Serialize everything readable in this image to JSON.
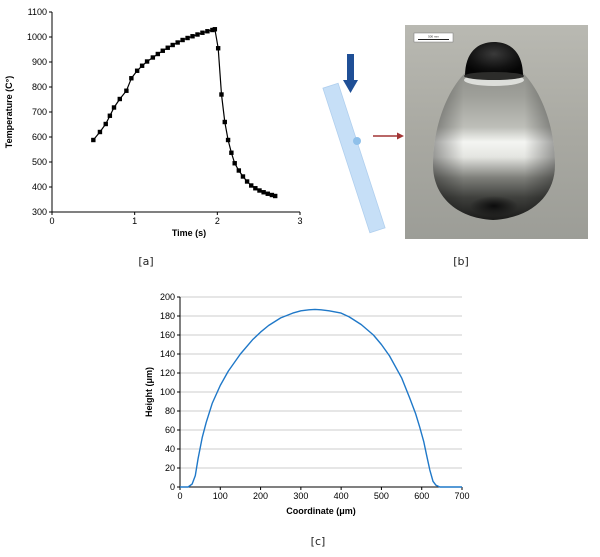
{
  "panels": {
    "a": {
      "caption": "[a]"
    },
    "b": {
      "caption": "[b]",
      "scale_bar_label": "500 mm"
    },
    "c": {
      "caption": "[c]"
    }
  },
  "chart_data": [
    {
      "panel": "a",
      "type": "line",
      "marker": "square",
      "color": "#000000",
      "xlabel": "Time (s)",
      "ylabel": "Temperature (C°)",
      "xlim": [
        0,
        3
      ],
      "ylim": [
        300,
        1100
      ],
      "xticks": [
        0,
        1,
        2,
        3
      ],
      "yticks": [
        300,
        400,
        500,
        600,
        700,
        800,
        900,
        1000,
        1100
      ],
      "grid": false,
      "series": [
        {
          "x": [
            0.5,
            0.58,
            0.65,
            0.7,
            0.75,
            0.82,
            0.9,
            0.96,
            1.03,
            1.09,
            1.15,
            1.22,
            1.28,
            1.34,
            1.4,
            1.46,
            1.52,
            1.58,
            1.64,
            1.7,
            1.76,
            1.82,
            1.88,
            1.94,
            1.97,
            2.01,
            2.05,
            2.09,
            2.13,
            2.17,
            2.21,
            2.26,
            2.31,
            2.36,
            2.41,
            2.46,
            2.51,
            2.56,
            2.61,
            2.66,
            2.7
          ],
          "y": [
            588,
            620,
            652,
            685,
            718,
            752,
            785,
            835,
            865,
            885,
            902,
            918,
            932,
            945,
            957,
            968,
            978,
            988,
            996,
            1003,
            1010,
            1017,
            1023,
            1028,
            1031,
            955,
            770,
            660,
            588,
            537,
            495,
            466,
            442,
            422,
            406,
            395,
            386,
            379,
            373,
            368,
            364
          ]
        }
      ]
    },
    {
      "panel": "c",
      "type": "line",
      "color": "#1f78c8",
      "xlabel": "Coordinate (μm)",
      "ylabel": "Height (μm)",
      "xlim": [
        0,
        700
      ],
      "ylim": [
        0,
        200
      ],
      "xticks": [
        0,
        100,
        200,
        300,
        400,
        500,
        600,
        700
      ],
      "yticks": [
        0,
        20,
        40,
        60,
        80,
        100,
        120,
        140,
        160,
        180,
        200
      ],
      "grid": "horizontal",
      "series": [
        {
          "x": [
            0,
            20,
            30,
            38,
            45,
            55,
            65,
            80,
            100,
            120,
            150,
            180,
            200,
            220,
            250,
            280,
            300,
            320,
            335,
            350,
            370,
            400,
            420,
            450,
            480,
            500,
            520,
            550,
            570,
            585,
            595,
            605,
            612,
            620,
            628,
            635,
            645,
            660,
            700
          ],
          "y": [
            0,
            0,
            3,
            12,
            30,
            52,
            68,
            88,
            107,
            122,
            140,
            155,
            163,
            170,
            178,
            183,
            185.5,
            186.5,
            187,
            186.5,
            185.5,
            183,
            179,
            171,
            160,
            150,
            138,
            115,
            94,
            77,
            63,
            48,
            34,
            18,
            6,
            2,
            0,
            0,
            0
          ]
        }
      ]
    }
  ]
}
